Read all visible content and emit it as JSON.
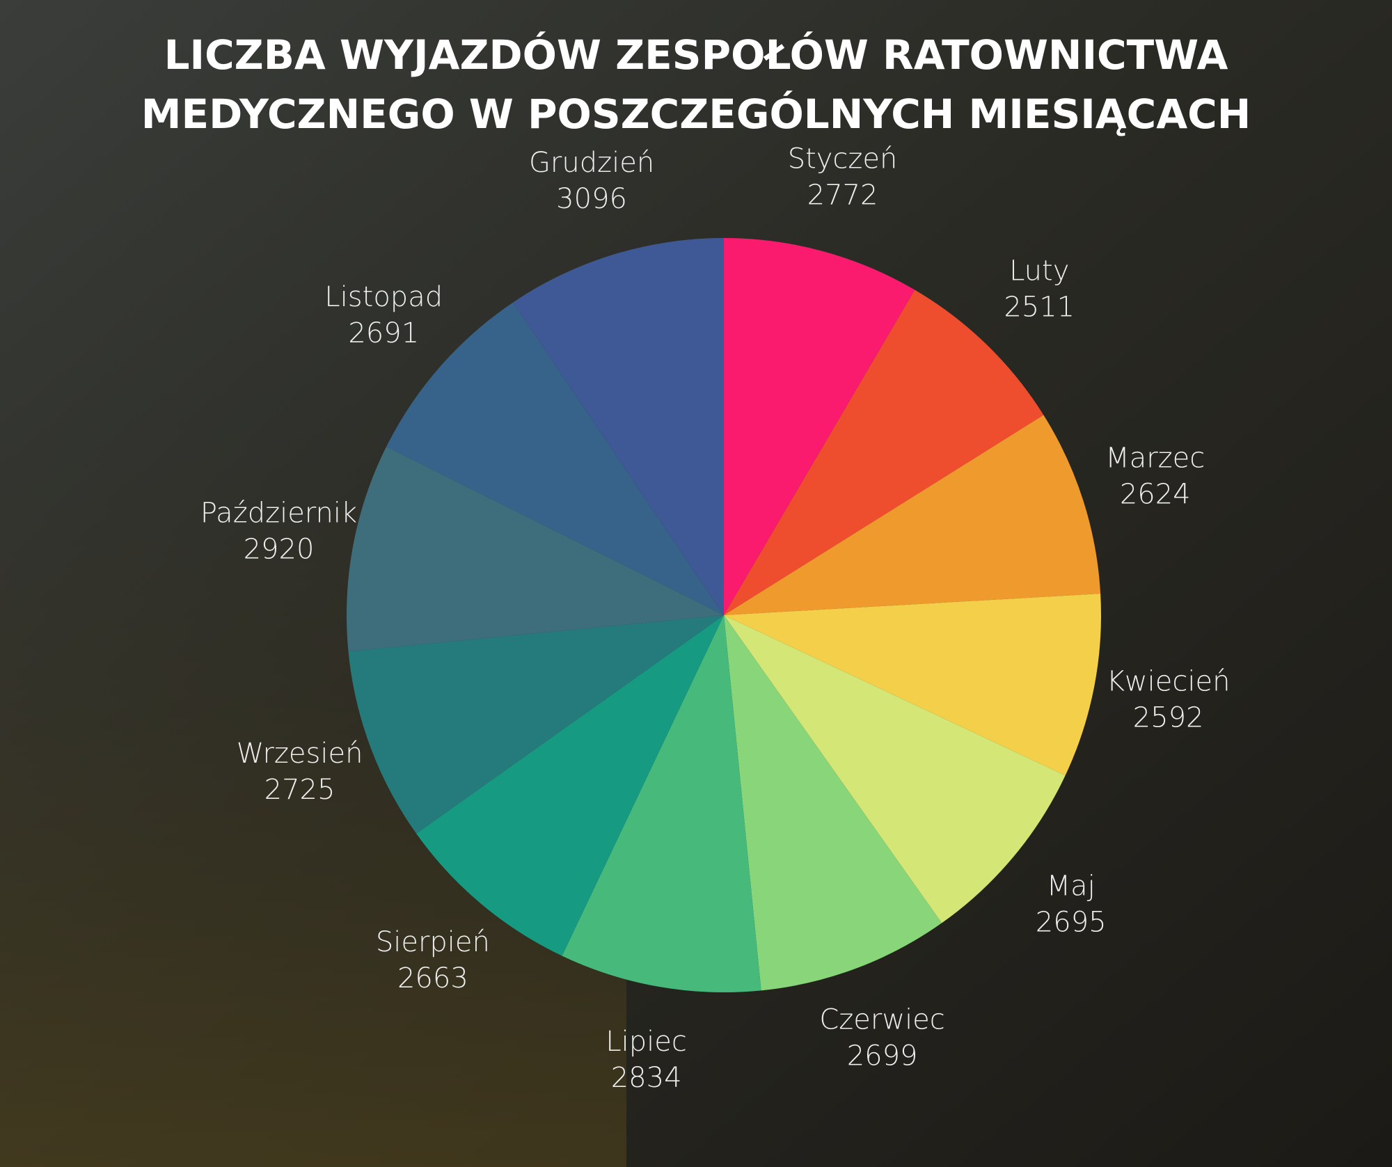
{
  "chart_data": {
    "type": "pie",
    "title": [
      "LICZBA WYJAZDÓW ZESPOŁÓW RATOWNICTWA",
      "MEDYCZNEGO W POSZCZEGÓLNYCH MIESIĄCACH"
    ],
    "categories": [
      "Styczeń",
      "Luty",
      "Marzec",
      "Kwiecień",
      "Maj",
      "Czerwiec",
      "Lipiec",
      "Sierpień",
      "Wrzesień",
      "Październik",
      "Listopad",
      "Grudzień"
    ],
    "values": [
      2772,
      2511,
      2624,
      2592,
      2695,
      2699,
      2834,
      2663,
      2725,
      2920,
      2691,
      3096
    ],
    "colors": [
      "#fa1a6e",
      "#ef4e2e",
      "#ef9a2c",
      "#f4cf4a",
      "#d4e675",
      "#89d57a",
      "#46b97b",
      "#169b82",
      "#257b7b",
      "#3e6e7c",
      "#37628a",
      "#3e5995"
    ]
  }
}
